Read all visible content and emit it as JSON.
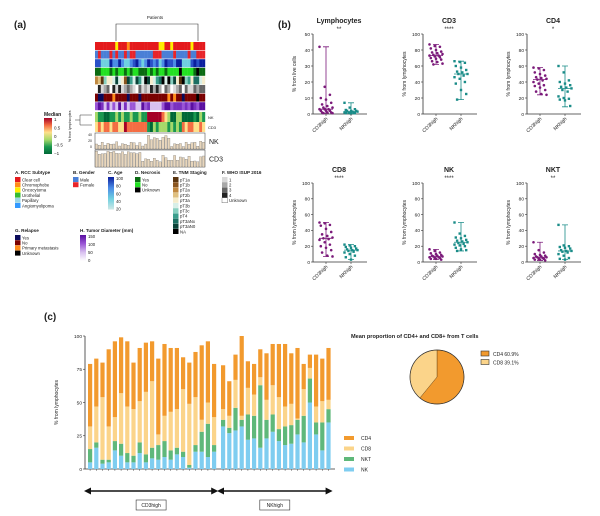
{
  "panels": {
    "a": "(a)",
    "b": "(b)",
    "c": "(c)"
  },
  "heatmap": {
    "top_label": "Patients",
    "row_labels": [
      "NK",
      "CD3"
    ],
    "side_label": "% from lymphocytes",
    "bar_labels": [
      "NK",
      "CD3"
    ],
    "nk_ticks": [
      "40",
      "20",
      "0"
    ],
    "median_title": "Median",
    "median_ticks": [
      "1",
      "0.5",
      "0",
      "−0.5",
      "−1"
    ],
    "median_colors": [
      "#a50026",
      "#f46d43",
      "#fee08b",
      "#a6d96a",
      "#1a9850",
      "#006837"
    ]
  },
  "legends": [
    {
      "title": "A. RCC Subtype",
      "items": [
        [
          "Clear cell",
          "#e41a1c"
        ],
        [
          "Chromophobe",
          "#ff8c1a"
        ],
        [
          "Oncocytoma",
          "#ffee00"
        ],
        [
          "Urothelial",
          "#33bb33"
        ],
        [
          "Papillary",
          "#99d5e6"
        ],
        [
          "Angiomyolipoma",
          "#3399ff"
        ]
      ]
    },
    {
      "title": "B. Gender",
      "items": [
        [
          "Male",
          "#4a7fd6"
        ],
        [
          "Female",
          "#e8242a"
        ]
      ]
    },
    {
      "title": "C. Age",
      "ticks": [
        "100",
        "80",
        "60",
        "40",
        "20"
      ],
      "colors": [
        "#0b1f9e",
        "#4b8be6",
        "#6fd0e0",
        "#cfe8e6"
      ]
    },
    {
      "title": "D. Necrosis",
      "items": [
        [
          "Yes",
          "#0b6b12"
        ],
        [
          "No",
          "#22e022"
        ],
        [
          "Unknown",
          "#000000"
        ]
      ]
    },
    {
      "title": "E. TNM Staging",
      "items": [
        [
          "pT1a",
          "#5a3510"
        ],
        [
          "pT1b",
          "#8a5520"
        ],
        [
          "pT2a",
          "#c08840"
        ],
        [
          "pT2b",
          "#dfc080"
        ],
        [
          "pT3a",
          "#f5eccc"
        ],
        [
          "pT3b",
          "#d8efe8"
        ],
        [
          "pT3c",
          "#88d0c0"
        ],
        [
          "pT4",
          "#3a9e8c"
        ],
        [
          "pT3aNx",
          "#1c6f62"
        ],
        [
          "pT3aN0",
          "#0a4238"
        ],
        [
          "NA",
          "#000000"
        ]
      ]
    },
    {
      "title": "F. WHO ISUP 2016",
      "items": [
        [
          "1",
          "#d9d9d9"
        ],
        [
          "2",
          "#a8a8a8"
        ],
        [
          "3",
          "#666666"
        ],
        [
          "4",
          "#222222"
        ],
        [
          "Unknown",
          "#ffffff"
        ]
      ]
    },
    {
      "title": "G. Relapse",
      "items": [
        [
          "Yes",
          "#0a0a5a"
        ],
        [
          "No",
          "#7a0000"
        ],
        [
          "Primary metastasis",
          "#ff8c1a"
        ],
        [
          "Unknown",
          "#000000"
        ]
      ]
    },
    {
      "title": "H. Tumor Diameter (mm)",
      "ticks": [
        "150",
        "100",
        "50",
        "0"
      ],
      "colors": [
        "#5a0fa0",
        "#9a55d6",
        "#d8c0f0",
        "#ffffff"
      ]
    }
  ],
  "dotplots": {
    "ylabel_first": "% from live cells",
    "ylabel": "% from lymphocytes",
    "group_labels": [
      "CD3high",
      "NKhigh"
    ],
    "group_colors": [
      "#7b1a7a",
      "#1a8c88"
    ],
    "plots": [
      {
        "title": "Lymphocytes",
        "stars": "**",
        "ymax": 50,
        "ticks": [
          "0",
          "10",
          "20",
          "30",
          "40",
          "50"
        ],
        "groups": [
          {
            "median": 3,
            "min": 0.5,
            "max": 42,
            "points": [
              42,
              17,
              12,
              10,
              9,
              7,
              6,
              5,
              4,
              4,
              3,
              3,
              3,
              2,
              2,
              2,
              1,
              1,
              1,
              0.5,
              0.5
            ]
          },
          {
            "median": 1.5,
            "min": 0.2,
            "max": 7,
            "points": [
              7,
              4,
              3,
              2.5,
              2,
              2,
              2,
              1.5,
              1.5,
              1,
              1,
              1,
              0.8,
              0.5,
              0.5,
              0.3
            ]
          }
        ]
      },
      {
        "title": "CD3",
        "stars": "****",
        "ymax": 100,
        "ticks": [
          "0",
          "20",
          "40",
          "60",
          "80",
          "100"
        ],
        "groups": [
          {
            "median": 73,
            "min": 62,
            "max": 87,
            "points": [
              87,
              85,
              84,
              82,
              80,
              78,
              77,
              76,
              75,
              74,
              73,
              73,
              72,
              71,
              70,
              69,
              68,
              66,
              65,
              63,
              62
            ]
          },
          {
            "median": 50,
            "min": 18,
            "max": 66,
            "points": [
              66,
              65,
              64,
              60,
              58,
              55,
              53,
              52,
              50,
              50,
              48,
              46,
              44,
              40,
              38,
              30,
              25,
              18
            ]
          }
        ]
      },
      {
        "title": "CD4",
        "stars": "*",
        "ymax": 100,
        "ticks": [
          "0",
          "20",
          "40",
          "60",
          "80",
          "100"
        ],
        "groups": [
          {
            "median": 43,
            "min": 24,
            "max": 58,
            "points": [
              58,
              57,
              55,
              52,
              50,
              48,
              46,
              45,
              44,
              43,
              42,
              40,
              38,
              36,
              35,
              33,
              30,
              28,
              25,
              24
            ]
          },
          {
            "median": 32,
            "min": 9,
            "max": 60,
            "points": [
              60,
              52,
              42,
              40,
              38,
              36,
              34,
              33,
              32,
              30,
              28,
              22,
              20,
              19,
              18,
              17,
              10
            ]
          }
        ]
      },
      {
        "title": "CD8",
        "stars": "****",
        "ymax": 100,
        "ticks": [
          "0",
          "20",
          "40",
          "60",
          "80",
          "100"
        ],
        "groups": [
          {
            "median": 30,
            "min": 7,
            "max": 50,
            "points": [
              50,
              49,
              47,
              46,
              42,
              38,
              35,
              33,
              31,
              30,
              29,
              28,
              25,
              22,
              20,
              18,
              15,
              12,
              8,
              7
            ]
          },
          {
            "median": 15,
            "min": 3,
            "max": 22,
            "points": [
              22,
              21,
              20,
              19,
              18,
              17,
              16,
              15,
              15,
              14,
              13,
              12,
              10,
              8,
              6,
              3
            ]
          }
        ]
      },
      {
        "title": "NK",
        "stars": "****",
        "ymax": 100,
        "ticks": [
          "0",
          "20",
          "40",
          "60",
          "80",
          "100"
        ],
        "groups": [
          {
            "median": 7,
            "min": 3,
            "max": 16,
            "points": [
              16,
              14,
              12,
              11,
              10,
              9,
              8,
              8,
              7,
              7,
              6,
              6,
              5,
              5,
              4,
              4,
              3
            ]
          },
          {
            "median": 25,
            "min": 14,
            "max": 50,
            "points": [
              50,
              36,
              33,
              31,
              30,
              28,
              27,
              26,
              25,
              24,
              23,
              22,
              21,
              20,
              18,
              16,
              15,
              14
            ]
          }
        ]
      },
      {
        "title": "NKT",
        "stars": "**",
        "ymax": 100,
        "ticks": [
          "0",
          "20",
          "40",
          "60",
          "80",
          "100"
        ],
        "groups": [
          {
            "median": 6,
            "min": 2,
            "max": 25,
            "points": [
              25,
              15,
              12,
              10,
              9,
              8,
              7,
              7,
              6,
              6,
              5,
              5,
              4,
              4,
              3,
              3,
              2
            ]
          },
          {
            "median": 14,
            "min": 3,
            "max": 47,
            "points": [
              47,
              21,
              20,
              19,
              18,
              17,
              15,
              14,
              14,
              13,
              12,
              10,
              8,
              5,
              4,
              3
            ]
          }
        ]
      }
    ]
  },
  "chart_data": {
    "type": "bar",
    "stacked": true,
    "ylabel": "% from lymphocytes",
    "ylim": [
      0,
      100
    ],
    "yticks": [
      "0",
      "25",
      "50",
      "75",
      "100"
    ],
    "series_order": [
      "NK",
      "NKT",
      "CD8",
      "CD4"
    ],
    "legend": [
      [
        "CD4",
        "#f29a2e"
      ],
      [
        "CD8",
        "#fbd48a"
      ],
      [
        "NKT",
        "#5fb87a"
      ],
      [
        "NK",
        "#7fcdf0"
      ]
    ],
    "groups": [
      {
        "label": "CD3high",
        "bars": [
          [
            5,
            10,
            17,
            47
          ],
          [
            16,
            4,
            27,
            36
          ],
          [
            4,
            3,
            47,
            26
          ],
          [
            5,
            2,
            25,
            58
          ],
          [
            14,
            7,
            18,
            57
          ],
          [
            10,
            9,
            38,
            42
          ],
          [
            5,
            7,
            35,
            49
          ],
          [
            5,
            5,
            35,
            35
          ],
          [
            12,
            8,
            31,
            40
          ],
          [
            5,
            6,
            47,
            37
          ],
          [
            8,
            8,
            50,
            30
          ],
          [
            7,
            11,
            8,
            57
          ],
          [
            9,
            12,
            19,
            54
          ],
          [
            7,
            7,
            29,
            48
          ],
          [
            11,
            5,
            29,
            46
          ],
          [
            9,
            4,
            47,
            24
          ],
          [
            1,
            2,
            46,
            31
          ],
          [
            13,
            5,
            36,
            34
          ],
          [
            13,
            15,
            9,
            56
          ],
          [
            9,
            25,
            16,
            46
          ],
          [
            13,
            5,
            21,
            40
          ]
        ]
      },
      {
        "label": "NKhigh",
        "bars": [
          [
            32,
            5,
            8,
            33
          ],
          [
            27,
            4,
            9,
            26
          ],
          [
            29,
            17,
            21,
            19
          ],
          [
            32,
            5,
            3,
            60
          ],
          [
            22,
            19,
            20,
            20
          ],
          [
            23,
            17,
            16,
            23
          ],
          [
            16,
            47,
            6,
            21
          ],
          [
            23,
            14,
            15,
            35
          ],
          [
            28,
            13,
            22,
            31
          ],
          [
            21,
            9,
            24,
            40
          ],
          [
            18,
            14,
            15,
            47
          ],
          [
            19,
            14,
            16,
            38
          ],
          [
            26,
            11,
            1,
            53
          ],
          [
            20,
            20,
            20,
            19
          ],
          [
            50,
            18,
            8,
            10
          ],
          [
            26,
            9,
            12,
            39
          ],
          [
            14,
            21,
            16,
            32
          ],
          [
            35,
            10,
            7,
            39
          ]
        ]
      }
    ],
    "pie": {
      "title": "Mean proportion of CD4+ and CD8+ from T cells",
      "slices": [
        {
          "label": "CD4 60.9%",
          "value": 60.9,
          "color": "#f29a2e"
        },
        {
          "label": "CD8 39.1%",
          "value": 39.1,
          "color": "#fbd48a"
        }
      ]
    }
  }
}
